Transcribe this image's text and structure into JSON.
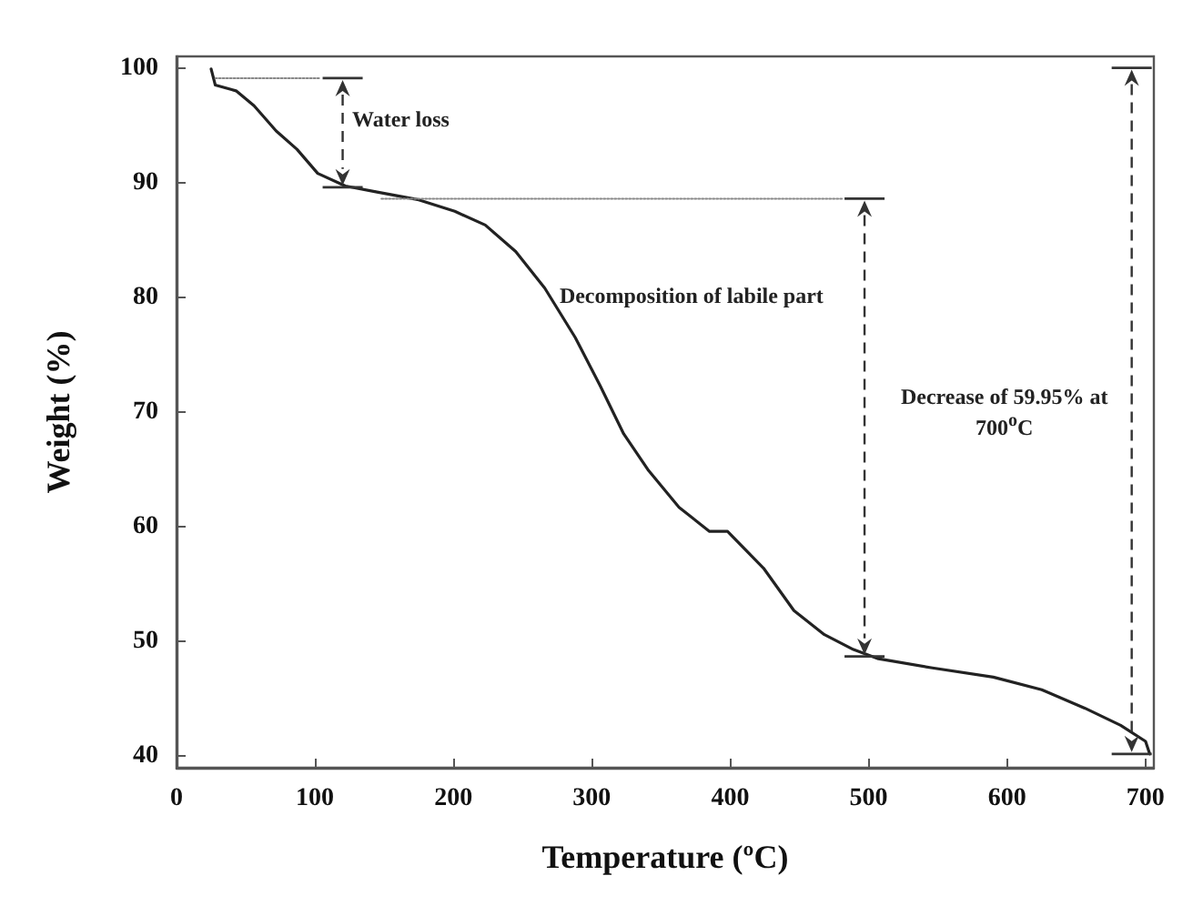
{
  "chart_data": {
    "type": "line",
    "xlabel": "Temperature (ºC)",
    "ylabel": "Weight (%)",
    "series": [
      {
        "color": "#222222",
        "x": [
          25,
          28,
          43,
          56,
          72,
          87,
          102,
          122,
          144,
          175,
          201,
          223,
          245,
          266,
          288,
          306,
          323,
          341,
          363,
          385,
          398,
          424,
          446,
          468,
          489,
          507,
          546,
          590,
          625,
          656,
          682,
          700,
          703
        ],
        "values": [
          99.9,
          98.5,
          98,
          96.7,
          94.5,
          92.9,
          90.8,
          89.7,
          89.2,
          88.5,
          87.5,
          86.3,
          84,
          80.8,
          76.5,
          72.3,
          68.1,
          64.9,
          61.7,
          59.6,
          59.6,
          56.4,
          52.7,
          50.6,
          49.3,
          48.5,
          47.7,
          46.9,
          45.8,
          44.2,
          42.7,
          41.3,
          40.2
        ]
      },
      {
        "color": "#888888",
        "line_style": "dotted",
        "x": [
          28,
          104
        ],
        "values": [
          99.1,
          99.1
        ]
      },
      {
        "color": "#888888",
        "line_style": "dotted",
        "x": [
          148,
          481
        ],
        "values": [
          88.6,
          88.6
        ]
      }
    ],
    "xlim": [
      0,
      706
    ],
    "ylim": [
      39,
      101
    ],
    "xticks": [
      0,
      100,
      200,
      300,
      400,
      500,
      600,
      700
    ],
    "yticks": [
      40,
      50,
      60,
      70,
      80,
      90,
      100
    ],
    "grid": false,
    "marker": "none",
    "line_style": "solid",
    "annotations": [
      "Water loss",
      "Decomposition of labile part",
      "Decrease of 59.95% at 700$^{o}$C"
    ]
  }
}
